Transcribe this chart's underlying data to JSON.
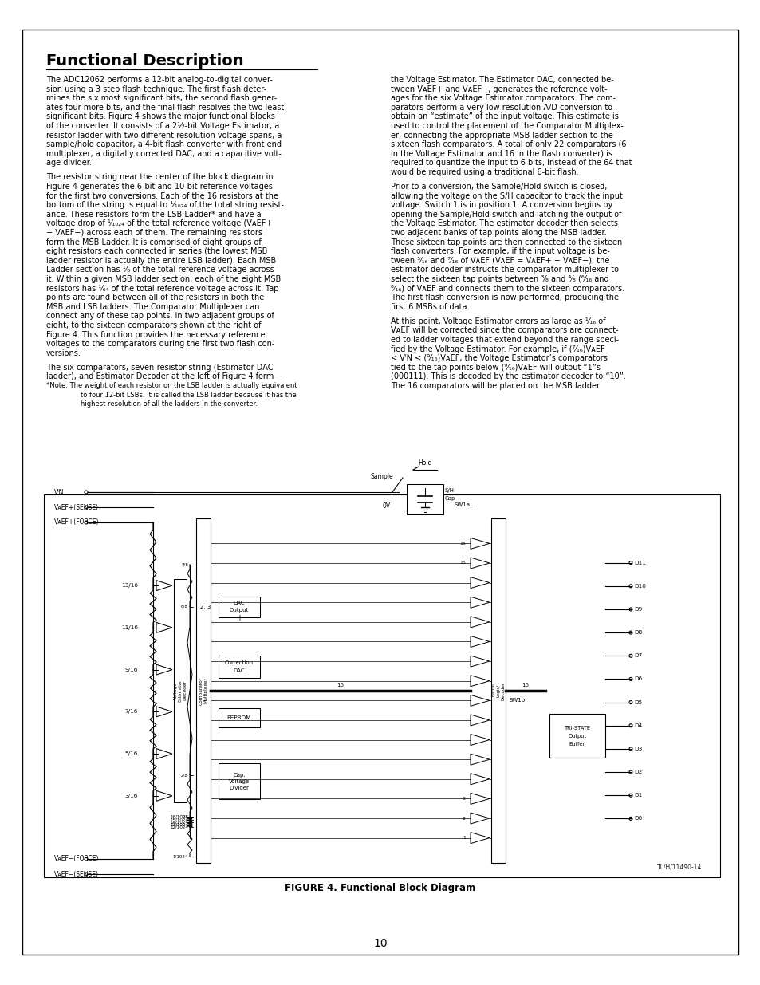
{
  "title": "Functional Description",
  "page_number": "10",
  "figure_caption": "FIGURE 4. Functional Block Diagram",
  "figure_label": "TL/H/11490-14",
  "bg_color": "#ffffff",
  "border_color": "#000000",
  "text_color": "#000000",
  "col1_lines": [
    "The ADC12062 performs a 12-bit analog-to-digital conver-",
    "sion using a 3 step flash technique. The first flash deter-",
    "mines the six most significant bits, the second flash gener-",
    "ates four more bits, and the final flash resolves the two least",
    "significant bits. Figure 4 shows the major functional blocks",
    "of the converter. It consists of a 2½-bit Voltage Estimator, a",
    "resistor ladder with two different resolution voltage spans, a",
    "sample/hold capacitor, a 4-bit flash converter with front end",
    "multiplexer, a digitally corrected DAC, and a capacitive volt-",
    "age divider.",
    "",
    "The resistor string near the center of the block diagram in",
    "Figure 4 generates the 6-bit and 10-bit reference voltages",
    "for the first two conversions. Each of the 16 resistors at the",
    "bottom of the string is equal to ¹⁄₁₀₂₄ of the total string resist-",
    "ance. These resistors form the LSB Ladder* and have a",
    "voltage drop of ¹⁄₁₀₂₄ of the total reference voltage (VᴀEF+",
    "− VᴀEF−) across each of them. The remaining resistors",
    "form the MSB Ladder. It is comprised of eight groups of",
    "eight resistors each connected in series (the lowest MSB",
    "ladder resistor is actually the entire LSB ladder). Each MSB",
    "Ladder section has ¹⁄₈ of the total reference voltage across",
    "it. Within a given MSB ladder section, each of the eight MSB",
    "resistors has ¹⁄₆₄ of the total reference voltage across it. Tap",
    "points are found between all of the resistors in both the",
    "MSB and LSB ladders. The Comparator Multiplexer can",
    "connect any of these tap points, in two adjacent groups of",
    "eight, to the sixteen comparators shown at the right of",
    "Figure 4. This function provides the necessary reference",
    "voltages to the comparators during the first two flash con-",
    "versions.",
    "",
    "The six comparators, seven-resistor string (Estimator DAC",
    "ladder), and Estimator Decoder at the left of Figure 4 form",
    "*Note: The weight of each resistor on the LSB ladder is actually equivalent",
    "        to four 12-bit LSBs. It is called the LSB ladder because it has the",
    "        highest resolution of all the ladders in the converter."
  ],
  "col2_lines": [
    "the Voltage Estimator. The Estimator DAC, connected be-",
    "tween VᴀEF+ and VᴀEF−, generates the reference volt-",
    "ages for the six Voltage Estimator comparators. The com-",
    "parators perform a very low resolution A/D conversion to",
    "obtain an “estimate” of the input voltage. This estimate is",
    "used to control the placement of the Comparator Multiplex-",
    "er, connecting the appropriate MSB ladder section to the",
    "sixteen flash comparators. A total of only 22 comparators (6",
    "in the Voltage Estimator and 16 in the flash converter) is",
    "required to quantize the input to 6 bits, instead of the 64 that",
    "would be required using a traditional 6-bit flash.",
    "",
    "Prior to a conversion, the Sample/Hold switch is closed,",
    "allowing the voltage on the S/H capacitor to track the input",
    "voltage. Switch 1 is in position 1. A conversion begins by",
    "opening the Sample/Hold switch and latching the output of",
    "the Voltage Estimator. The estimator decoder then selects",
    "two adjacent banks of tap points along the MSB ladder.",
    "These sixteen tap points are then connected to the sixteen",
    "flash converters. For example, if the input voltage is be-",
    "tween ⁵⁄₁₆ and ⁷⁄₁₆ of VᴀEF (VᴀEF = VᴀEF+ − VᴀEF−), the",
    "estimator decoder instructs the comparator multiplexer to",
    "select the sixteen tap points between ³⁄₈ and ⁴⁄₈ (⁶⁄₁₆ and",
    "⁸⁄₁₆) of VᴀEF and connects them to the sixteen comparators.",
    "The first flash conversion is now performed, producing the",
    "first 6 MSBs of data.",
    "",
    "At this point, Voltage Estimator errors as large as ¹⁄₁₆ of",
    "VᴀEF will be corrected since the comparators are connect-",
    "ed to ladder voltages that extend beyond the range speci-",
    "fied by the Voltage Estimator. For example, if (⁷⁄₁₆)VᴀEF",
    "< VᴵN < (⁹⁄₁₆)VᴀEF, the Voltage Estimator’s comparators",
    "tied to the tap points below (⁹⁄₁₆)VᴀEF will output “1”s",
    "(000111). This is decoded by the estimator decoder to “10”.",
    "The 16 comparators will be placed on the MSB ladder"
  ]
}
